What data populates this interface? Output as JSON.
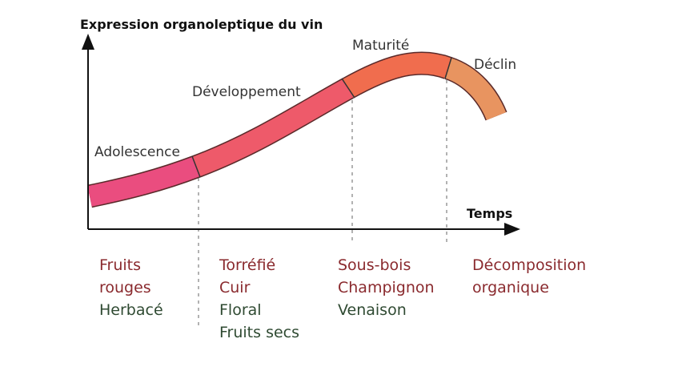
{
  "axes": {
    "y_label": "Expression organoleptique du vin",
    "x_label": "Temps"
  },
  "phases": [
    {
      "label": "Adolescence",
      "aromas": [
        "Fruits",
        "rouges",
        "Herbacé"
      ]
    },
    {
      "label": "Développement",
      "aromas": [
        "Torréfié",
        "Cuir",
        "Floral",
        "Fruits secs"
      ]
    },
    {
      "label": "Maturité",
      "aromas": [
        "Sous-bois",
        "Champignon",
        "Venaison"
      ]
    },
    {
      "label": "Déclin",
      "aromas": [
        "Décomposition",
        "organique"
      ]
    }
  ]
}
